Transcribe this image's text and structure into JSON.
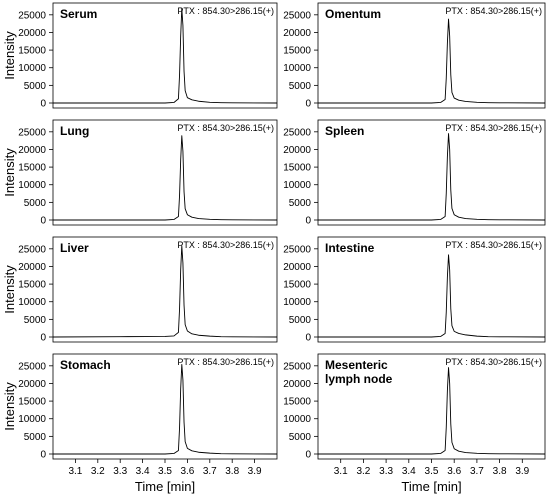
{
  "chart_data": [
    {
      "type": "line",
      "title": "Serum",
      "annotation": "PTX : 854.30>286.15(+)",
      "ylabel": "Intensity",
      "xlabel": "",
      "xlim": [
        3.0,
        4.0
      ],
      "ylim": [
        0,
        27500
      ],
      "yticks": [
        0,
        5000,
        10000,
        15000,
        20000,
        25000
      ],
      "grid": false,
      "series": [
        {
          "x": [
            3.0,
            3.5,
            3.54,
            3.56,
            3.565,
            3.57,
            3.575,
            3.58,
            3.585,
            3.59,
            3.6,
            3.62,
            3.65,
            3.7,
            3.75,
            3.8,
            4.0
          ],
          "y": [
            0,
            0,
            150,
            1200,
            8000,
            19000,
            26800,
            22000,
            9000,
            3500,
            1500,
            900,
            500,
            200,
            100,
            50,
            0
          ]
        }
      ]
    },
    {
      "type": "line",
      "title": "Omentum",
      "annotation": "PTX : 854.30>286.15(+)",
      "ylabel": "",
      "xlabel": "",
      "xlim": [
        3.0,
        4.0
      ],
      "ylim": [
        0,
        27500
      ],
      "yticks": [
        0,
        5000,
        10000,
        15000,
        20000,
        25000
      ],
      "grid": false,
      "series": [
        {
          "x": [
            3.0,
            3.5,
            3.54,
            3.56,
            3.565,
            3.57,
            3.575,
            3.58,
            3.585,
            3.59,
            3.6,
            3.62,
            3.65,
            3.7,
            3.75,
            3.8,
            4.0
          ],
          "y": [
            0,
            0,
            150,
            1000,
            7000,
            17000,
            23800,
            19000,
            8000,
            3000,
            1400,
            800,
            450,
            200,
            100,
            50,
            0
          ]
        }
      ]
    },
    {
      "type": "line",
      "title": "Lung",
      "annotation": "PTX : 854.30>286.15(+)",
      "ylabel": "Intensity",
      "xlabel": "",
      "xlim": [
        3.0,
        4.0
      ],
      "ylim": [
        0,
        27500
      ],
      "yticks": [
        0,
        5000,
        10000,
        15000,
        20000,
        25000
      ],
      "grid": false,
      "series": [
        {
          "x": [
            3.0,
            3.5,
            3.54,
            3.56,
            3.565,
            3.57,
            3.575,
            3.58,
            3.585,
            3.59,
            3.6,
            3.62,
            3.65,
            3.7,
            3.75,
            3.8,
            4.0
          ],
          "y": [
            0,
            0,
            150,
            1000,
            7000,
            17000,
            23900,
            19500,
            8000,
            3200,
            1500,
            800,
            400,
            200,
            100,
            50,
            0
          ]
        }
      ]
    },
    {
      "type": "line",
      "title": "Spleen",
      "annotation": "PTX : 854.30>286.15(+)",
      "ylabel": "",
      "xlabel": "",
      "xlim": [
        3.0,
        4.0
      ],
      "ylim": [
        0,
        27500
      ],
      "yticks": [
        0,
        5000,
        10000,
        15000,
        20000,
        25000
      ],
      "grid": false,
      "series": [
        {
          "x": [
            3.0,
            3.5,
            3.54,
            3.56,
            3.565,
            3.57,
            3.575,
            3.58,
            3.585,
            3.59,
            3.6,
            3.62,
            3.65,
            3.7,
            3.75,
            3.8,
            4.0
          ],
          "y": [
            0,
            0,
            150,
            1000,
            7500,
            18000,
            24500,
            20000,
            8500,
            3300,
            1500,
            800,
            400,
            200,
            100,
            50,
            0
          ]
        }
      ]
    },
    {
      "type": "line",
      "title": "Liver",
      "annotation": "PTX : 854.30>286.15(+)",
      "ylabel": "Intensity",
      "xlabel": "",
      "xlim": [
        3.0,
        4.0
      ],
      "ylim": [
        0,
        27500
      ],
      "yticks": [
        0,
        5000,
        10000,
        15000,
        20000,
        25000
      ],
      "grid": false,
      "series": [
        {
          "x": [
            3.0,
            3.3,
            3.5,
            3.54,
            3.56,
            3.565,
            3.57,
            3.575,
            3.58,
            3.585,
            3.59,
            3.6,
            3.62,
            3.65,
            3.7,
            3.75,
            3.8,
            4.0
          ],
          "y": [
            0,
            100,
            150,
            300,
            1300,
            8000,
            19000,
            25800,
            21000,
            9000,
            3500,
            1700,
            900,
            500,
            250,
            100,
            50,
            0
          ]
        }
      ]
    },
    {
      "type": "line",
      "title": "Intestine",
      "annotation": "PTX : 854.30>286.15(+)",
      "ylabel": "",
      "xlabel": "",
      "xlim": [
        3.0,
        4.0
      ],
      "ylim": [
        0,
        27500
      ],
      "yticks": [
        0,
        5000,
        10000,
        15000,
        20000,
        25000
      ],
      "grid": false,
      "series": [
        {
          "x": [
            3.0,
            3.5,
            3.54,
            3.56,
            3.565,
            3.57,
            3.575,
            3.58,
            3.585,
            3.59,
            3.6,
            3.62,
            3.65,
            3.7,
            3.75,
            3.8,
            4.0
          ],
          "y": [
            0,
            0,
            150,
            1000,
            7000,
            17000,
            23300,
            19000,
            8000,
            3200,
            1600,
            1000,
            600,
            250,
            100,
            50,
            0
          ]
        }
      ]
    },
    {
      "type": "line",
      "title": "Stomach",
      "annotation": "PTX : 854.30>286.15(+)",
      "ylabel": "Intensity",
      "xlabel": "Time [min]",
      "xlim": [
        3.0,
        4.0
      ],
      "ylim": [
        0,
        27500
      ],
      "yticks": [
        0,
        5000,
        10000,
        15000,
        20000,
        25000
      ],
      "xticks": [
        3.1,
        3.2,
        3.3,
        3.4,
        3.5,
        3.6,
        3.7,
        3.8,
        3.9
      ],
      "grid": false,
      "series": [
        {
          "x": [
            3.0,
            3.5,
            3.54,
            3.56,
            3.565,
            3.57,
            3.575,
            3.58,
            3.585,
            3.59,
            3.6,
            3.62,
            3.65,
            3.7,
            3.75,
            3.8,
            4.0
          ],
          "y": [
            0,
            0,
            150,
            1000,
            7500,
            18500,
            25400,
            21000,
            9000,
            3500,
            1600,
            900,
            500,
            250,
            100,
            50,
            0
          ]
        }
      ]
    },
    {
      "type": "line",
      "title": "Mesenteric\nlymph node",
      "annotation": "PTX : 854.30>286.15(+)",
      "ylabel": "",
      "xlabel": "Time [min]",
      "xlim": [
        3.0,
        4.0
      ],
      "ylim": [
        0,
        27500
      ],
      "yticks": [
        0,
        5000,
        10000,
        15000,
        20000,
        25000
      ],
      "xticks": [
        3.1,
        3.2,
        3.3,
        3.4,
        3.5,
        3.6,
        3.7,
        3.8,
        3.9
      ],
      "grid": false,
      "series": [
        {
          "x": [
            3.0,
            3.5,
            3.54,
            3.56,
            3.565,
            3.57,
            3.575,
            3.58,
            3.585,
            3.59,
            3.6,
            3.62,
            3.65,
            3.7,
            3.75,
            3.8,
            4.0
          ],
          "y": [
            0,
            0,
            150,
            1000,
            7500,
            18000,
            24500,
            20000,
            8500,
            3300,
            1500,
            800,
            400,
            200,
            100,
            50,
            0
          ]
        }
      ]
    }
  ]
}
